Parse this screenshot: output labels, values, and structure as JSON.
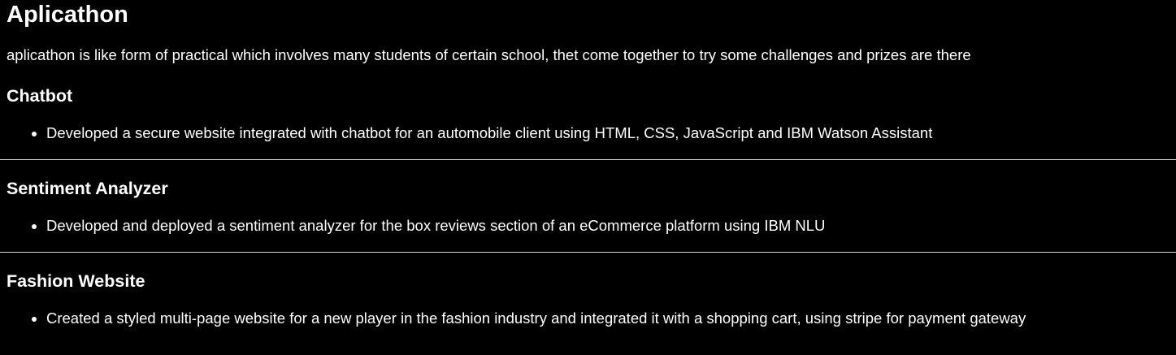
{
  "title": "Aplicathon",
  "intro": "aplicathon is like form of practical which involves many students of certain school, thet come together to try some challenges and prizes are there",
  "projects": [
    {
      "name": "Chatbot",
      "bullet": "Developed a secure website integrated with chatbot for an automobile client using HTML, CSS, JavaScript and IBM Watson Assistant"
    },
    {
      "name": "Sentiment Analyzer",
      "bullet": "Developed and deployed a sentiment analyzer for the box reviews section of an eCommerce platform using IBM NLU"
    },
    {
      "name": "Fashion Website",
      "bullet": "Created a styled multi-page website for a new player in the fashion industry and integrated it with a shopping cart, using stripe for payment gateway"
    }
  ]
}
